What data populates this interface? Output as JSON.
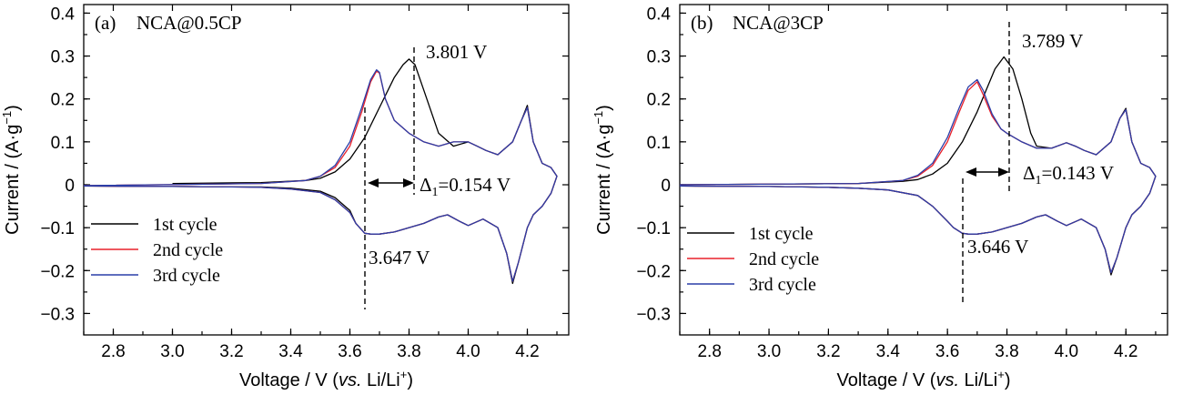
{
  "chart_data": [
    {
      "type": "line",
      "panel_label": "(a)",
      "title": "NCA@0.5CP",
      "xlabel": {
        "main": "Voltage / V (",
        "italic": "vs.",
        "tail": " Li/Li",
        "sup": "+",
        "close": ")"
      },
      "ylabel": {
        "main": "Current / (A·g",
        "sup": "−1",
        "close": ")"
      },
      "xlim": [
        2.7,
        4.34
      ],
      "ylim": [
        -0.35,
        0.42
      ],
      "xticks": [
        "2.8",
        "3.0",
        "3.2",
        "3.4",
        "3.6",
        "3.8",
        "4.0",
        "4.2"
      ],
      "yticks": [
        "−0.3",
        "−0.2",
        "−0.1",
        "0",
        "0.1",
        "0.2",
        "0.3",
        "0.4"
      ],
      "series": [
        {
          "name": "1st cycle",
          "color": "#000000",
          "x": [
            3.0,
            3.3,
            3.45,
            3.5,
            3.55,
            3.6,
            3.65,
            3.7,
            3.75,
            3.78,
            3.8,
            3.82,
            3.85,
            3.9,
            3.95,
            4.0,
            4.03,
            4.06,
            4.1,
            4.15,
            4.18,
            4.2,
            4.22,
            4.25,
            4.28,
            4.3,
            4.28,
            4.25,
            4.22,
            4.2,
            4.17,
            4.15,
            4.13,
            4.1,
            4.05,
            4.0,
            3.97,
            3.93,
            3.9,
            3.85,
            3.8,
            3.75,
            3.7,
            3.67,
            3.65,
            3.62,
            3.6,
            3.55,
            3.5,
            3.4,
            3.3,
            3.2,
            3.0,
            2.7
          ],
          "y": [
            0.003,
            0.005,
            0.01,
            0.015,
            0.03,
            0.06,
            0.11,
            0.18,
            0.25,
            0.28,
            0.293,
            0.28,
            0.22,
            0.12,
            0.09,
            0.1,
            0.09,
            0.08,
            0.07,
            0.1,
            0.15,
            0.185,
            0.1,
            0.05,
            0.04,
            0.02,
            -0.02,
            -0.05,
            -0.07,
            -0.1,
            -0.18,
            -0.23,
            -0.16,
            -0.1,
            -0.08,
            -0.095,
            -0.085,
            -0.07,
            -0.075,
            -0.09,
            -0.1,
            -0.11,
            -0.115,
            -0.115,
            -0.113,
            -0.09,
            -0.06,
            -0.03,
            -0.015,
            -0.008,
            -0.005,
            -0.005,
            -0.004,
            -0.003
          ]
        },
        {
          "name": "2nd cycle",
          "color": "#e8202a",
          "x": [
            2.7,
            3.3,
            3.45,
            3.5,
            3.55,
            3.6,
            3.64,
            3.67,
            3.69,
            3.7,
            3.72,
            3.75,
            3.8,
            3.85,
            3.9,
            3.95,
            4.0,
            4.03,
            4.06,
            4.1,
            4.15,
            4.18,
            4.2,
            4.22,
            4.25,
            4.28,
            4.3,
            4.28,
            4.25,
            4.22,
            4.2,
            4.17,
            4.15,
            4.13,
            4.1,
            4.05,
            4.0,
            3.97,
            3.93,
            3.9,
            3.85,
            3.8,
            3.75,
            3.7,
            3.67,
            3.65,
            3.62,
            3.6,
            3.55,
            3.5,
            3.4,
            3.3,
            3.2,
            3.0,
            2.7
          ],
          "y": [
            -0.002,
            0.003,
            0.01,
            0.02,
            0.04,
            0.09,
            0.17,
            0.24,
            0.265,
            0.26,
            0.2,
            0.15,
            0.12,
            0.1,
            0.09,
            0.1,
            0.1,
            0.09,
            0.08,
            0.07,
            0.1,
            0.15,
            0.18,
            0.1,
            0.05,
            0.04,
            0.02,
            -0.02,
            -0.05,
            -0.07,
            -0.1,
            -0.18,
            -0.225,
            -0.16,
            -0.1,
            -0.08,
            -0.095,
            -0.085,
            -0.07,
            -0.075,
            -0.09,
            -0.1,
            -0.11,
            -0.115,
            -0.115,
            -0.113,
            -0.09,
            -0.065,
            -0.035,
            -0.018,
            -0.01,
            -0.006,
            -0.005,
            -0.004,
            -0.003
          ]
        },
        {
          "name": "3rd cycle",
          "color": "#2a3ea8",
          "x": [
            2.7,
            3.3,
            3.45,
            3.5,
            3.55,
            3.6,
            3.64,
            3.67,
            3.69,
            3.7,
            3.72,
            3.75,
            3.8,
            3.85,
            3.9,
            3.95,
            4.0,
            4.03,
            4.06,
            4.1,
            4.15,
            4.18,
            4.2,
            4.22,
            4.25,
            4.28,
            4.3,
            4.28,
            4.25,
            4.22,
            4.2,
            4.17,
            4.15,
            4.13,
            4.1,
            4.05,
            4.0,
            3.97,
            3.93,
            3.9,
            3.85,
            3.8,
            3.75,
            3.7,
            3.67,
            3.65,
            3.62,
            3.6,
            3.55,
            3.5,
            3.4,
            3.3,
            3.2,
            3.0,
            2.7
          ],
          "y": [
            -0.002,
            0.003,
            0.01,
            0.02,
            0.045,
            0.1,
            0.18,
            0.245,
            0.268,
            0.262,
            0.2,
            0.15,
            0.12,
            0.1,
            0.09,
            0.1,
            0.1,
            0.09,
            0.08,
            0.07,
            0.1,
            0.15,
            0.18,
            0.1,
            0.05,
            0.04,
            0.02,
            -0.02,
            -0.05,
            -0.07,
            -0.1,
            -0.18,
            -0.225,
            -0.16,
            -0.1,
            -0.08,
            -0.095,
            -0.085,
            -0.07,
            -0.075,
            -0.09,
            -0.1,
            -0.11,
            -0.115,
            -0.115,
            -0.113,
            -0.09,
            -0.065,
            -0.035,
            -0.018,
            -0.01,
            -0.006,
            -0.005,
            -0.004,
            -0.003
          ]
        }
      ],
      "annotations": {
        "peak_ox": {
          "text": "3.801 V",
          "x": 3.801
        },
        "peak_red": {
          "text": "3.647 V",
          "x": 3.647
        },
        "delta": {
          "symbol": "Δ",
          "sub": "1",
          "value": "=0.154 V"
        }
      }
    },
    {
      "type": "line",
      "panel_label": "(b)",
      "title": "NCA@3CP",
      "xlabel": {
        "main": "Voltage / V (",
        "italic": "vs.",
        "tail": " Li/Li",
        "sup": "+",
        "close": ")"
      },
      "ylabel": {
        "main": "Current / (A·g",
        "sup": "−1",
        "close": ")"
      },
      "xlim": [
        2.7,
        4.34
      ],
      "ylim": [
        -0.35,
        0.42
      ],
      "xticks": [
        "2.8",
        "3.0",
        "3.2",
        "3.4",
        "3.6",
        "3.8",
        "4.0",
        "4.2"
      ],
      "yticks": [
        "−0.3",
        "−0.2",
        "−0.1",
        "0",
        "0.1",
        "0.2",
        "0.3",
        "0.4"
      ],
      "series": [
        {
          "name": "1st cycle",
          "color": "#000000",
          "x": [
            2.7,
            3.3,
            3.45,
            3.5,
            3.55,
            3.6,
            3.65,
            3.7,
            3.73,
            3.76,
            3.79,
            3.82,
            3.85,
            3.88,
            3.9,
            3.95,
            4.0,
            4.03,
            4.06,
            4.1,
            4.15,
            4.18,
            4.2,
            4.22,
            4.25,
            4.28,
            4.3,
            4.28,
            4.25,
            4.22,
            4.2,
            4.17,
            4.15,
            4.13,
            4.1,
            4.05,
            4.0,
            3.97,
            3.93,
            3.9,
            3.85,
            3.8,
            3.75,
            3.7,
            3.67,
            3.65,
            3.62,
            3.6,
            3.55,
            3.5,
            3.4,
            3.3,
            3.2,
            3.0,
            2.7
          ],
          "y": [
            0.0,
            0.003,
            0.008,
            0.012,
            0.025,
            0.05,
            0.1,
            0.17,
            0.22,
            0.27,
            0.298,
            0.27,
            0.2,
            0.12,
            0.09,
            0.085,
            0.098,
            0.09,
            0.08,
            0.07,
            0.1,
            0.155,
            0.178,
            0.1,
            0.05,
            0.04,
            0.02,
            -0.02,
            -0.05,
            -0.07,
            -0.1,
            -0.17,
            -0.21,
            -0.15,
            -0.1,
            -0.08,
            -0.095,
            -0.085,
            -0.07,
            -0.075,
            -0.09,
            -0.1,
            -0.11,
            -0.115,
            -0.115,
            -0.113,
            -0.1,
            -0.085,
            -0.05,
            -0.025,
            -0.012,
            -0.008,
            -0.006,
            -0.004,
            -0.003
          ]
        },
        {
          "name": "2nd cycle",
          "color": "#e8202a",
          "x": [
            2.7,
            3.3,
            3.45,
            3.5,
            3.55,
            3.6,
            3.64,
            3.67,
            3.7,
            3.72,
            3.75,
            3.78,
            3.8,
            3.85,
            3.9,
            3.95,
            4.0,
            4.03,
            4.06,
            4.1,
            4.15,
            4.18,
            4.2,
            4.22,
            4.25,
            4.28,
            4.3,
            4.28,
            4.25,
            4.22,
            4.2,
            4.17,
            4.15,
            4.13,
            4.1,
            4.05,
            4.0,
            3.97,
            3.93,
            3.9,
            3.85,
            3.8,
            3.75,
            3.7,
            3.67,
            3.65,
            3.62,
            3.6,
            3.55,
            3.5,
            3.4,
            3.3,
            3.2,
            3.0,
            2.7
          ],
          "y": [
            0.0,
            0.003,
            0.01,
            0.02,
            0.045,
            0.1,
            0.17,
            0.22,
            0.24,
            0.21,
            0.16,
            0.13,
            0.12,
            0.1,
            0.085,
            0.085,
            0.098,
            0.09,
            0.08,
            0.07,
            0.1,
            0.155,
            0.175,
            0.1,
            0.05,
            0.04,
            0.02,
            -0.02,
            -0.05,
            -0.07,
            -0.1,
            -0.17,
            -0.205,
            -0.15,
            -0.1,
            -0.08,
            -0.095,
            -0.085,
            -0.07,
            -0.075,
            -0.09,
            -0.1,
            -0.11,
            -0.115,
            -0.115,
            -0.113,
            -0.1,
            -0.085,
            -0.05,
            -0.025,
            -0.012,
            -0.008,
            -0.006,
            -0.004,
            -0.003
          ]
        },
        {
          "name": "3rd cycle",
          "color": "#2a3ea8",
          "x": [
            2.7,
            3.3,
            3.45,
            3.5,
            3.55,
            3.6,
            3.64,
            3.67,
            3.7,
            3.72,
            3.75,
            3.78,
            3.8,
            3.85,
            3.9,
            3.95,
            4.0,
            4.03,
            4.06,
            4.1,
            4.15,
            4.18,
            4.2,
            4.22,
            4.25,
            4.28,
            4.3,
            4.28,
            4.25,
            4.22,
            4.2,
            4.17,
            4.15,
            4.13,
            4.1,
            4.05,
            4.0,
            3.97,
            3.93,
            3.9,
            3.85,
            3.8,
            3.75,
            3.7,
            3.67,
            3.65,
            3.62,
            3.6,
            3.55,
            3.5,
            3.4,
            3.3,
            3.2,
            3.0,
            2.7
          ],
          "y": [
            0.0,
            0.003,
            0.01,
            0.022,
            0.05,
            0.11,
            0.18,
            0.228,
            0.245,
            0.22,
            0.165,
            0.13,
            0.12,
            0.1,
            0.085,
            0.085,
            0.098,
            0.09,
            0.08,
            0.07,
            0.1,
            0.155,
            0.175,
            0.1,
            0.05,
            0.04,
            0.02,
            -0.02,
            -0.05,
            -0.07,
            -0.1,
            -0.17,
            -0.205,
            -0.15,
            -0.1,
            -0.08,
            -0.095,
            -0.085,
            -0.07,
            -0.075,
            -0.09,
            -0.1,
            -0.11,
            -0.115,
            -0.115,
            -0.113,
            -0.1,
            -0.085,
            -0.05,
            -0.025,
            -0.012,
            -0.008,
            -0.006,
            -0.004,
            -0.003
          ]
        }
      ],
      "annotations": {
        "peak_ox": {
          "text": "3.789 V",
          "x": 3.789
        },
        "peak_red": {
          "text": "3.646 V",
          "x": 3.646
        },
        "delta": {
          "symbol": "Δ",
          "sub": "1",
          "value": "=0.143 V"
        }
      }
    }
  ]
}
